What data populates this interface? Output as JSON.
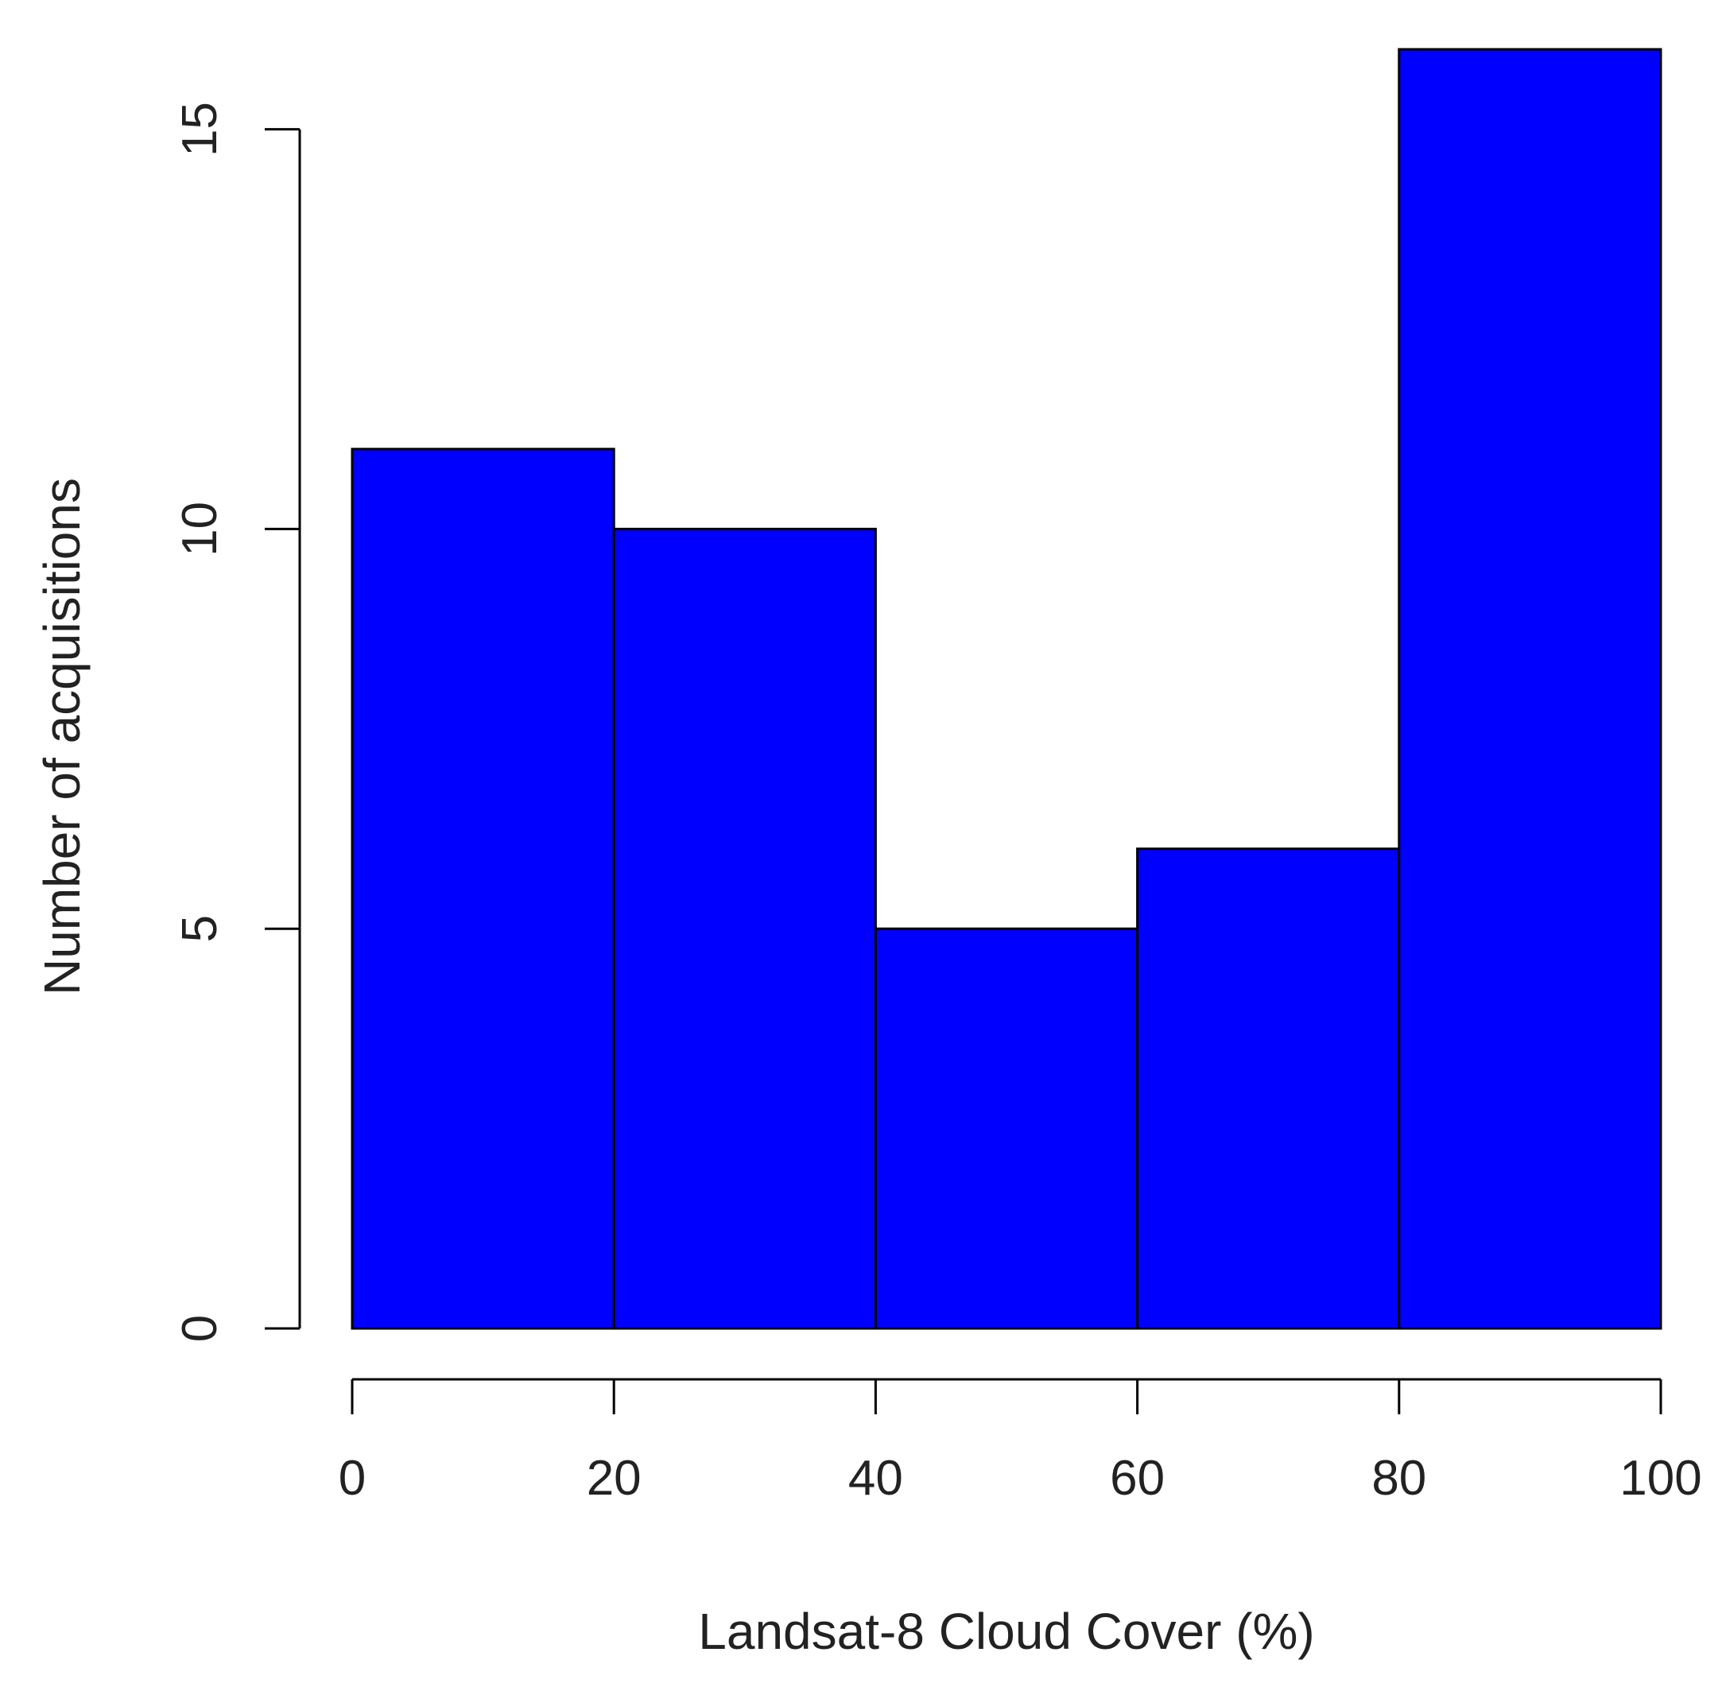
{
  "chart_data": {
    "type": "bar",
    "histogram": true,
    "bins": [
      {
        "x0": 0,
        "x1": 20,
        "count": 11
      },
      {
        "x0": 20,
        "x1": 40,
        "count": 10
      },
      {
        "x0": 40,
        "x1": 60,
        "count": 5
      },
      {
        "x0": 60,
        "x1": 80,
        "count": 6
      },
      {
        "x0": 80,
        "x1": 100,
        "count": 16
      }
    ],
    "xlabel": "Landsat-8 Cloud Cover (%)",
    "ylabel": "Number of acquisitions",
    "xlim": [
      0,
      100
    ],
    "ylim": [
      0,
      16
    ],
    "x_ticks": [
      {
        "value": 0,
        "label": "0"
      },
      {
        "value": 20,
        "label": "20"
      },
      {
        "value": 40,
        "label": "40"
      },
      {
        "value": 60,
        "label": "60"
      },
      {
        "value": 80,
        "label": "80"
      },
      {
        "value": 100,
        "label": "100"
      }
    ],
    "y_ticks": [
      {
        "value": 0,
        "label": "0"
      },
      {
        "value": 5,
        "label": "5"
      },
      {
        "value": 10,
        "label": "10"
      },
      {
        "value": 15,
        "label": "15"
      }
    ],
    "bar_color": "#0000ff",
    "edge_color": "#000000",
    "grid": false,
    "legend": "none"
  }
}
